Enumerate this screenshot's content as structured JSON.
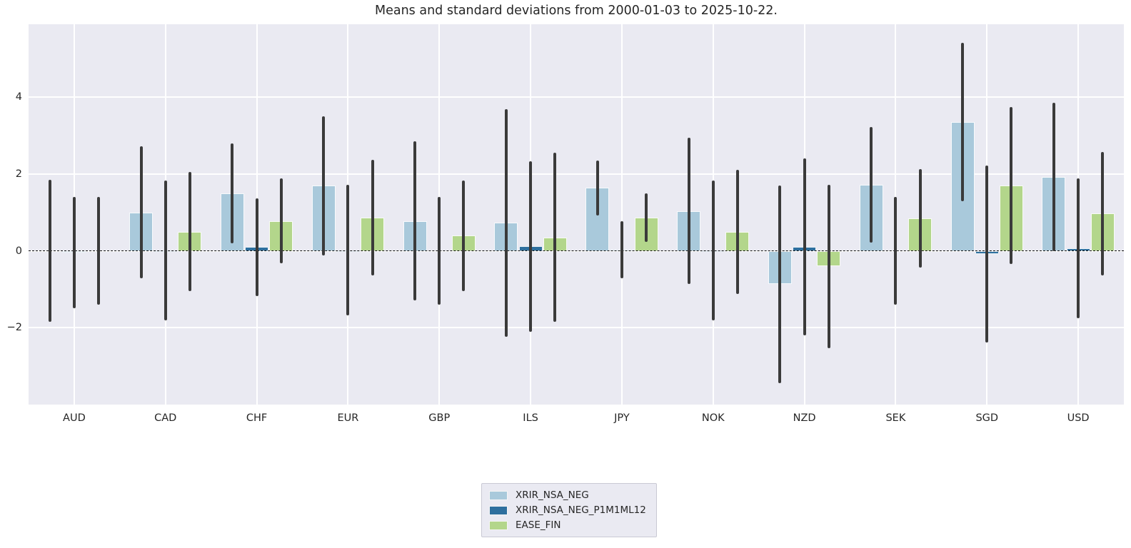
{
  "chart_data": {
    "type": "bar",
    "title": "Means and standard deviations from 2000-01-03 to 2025-10-22.",
    "categories": [
      "AUD",
      "CAD",
      "CHF",
      "EUR",
      "GBP",
      "ILS",
      "JPY",
      "NOK",
      "NZD",
      "SEK",
      "SGD",
      "USD"
    ],
    "series": [
      {
        "name": "XRIR_NSA_NEG",
        "color": "#a9c9db",
        "means": [
          0.0,
          1.0,
          1.5,
          1.7,
          0.78,
          0.73,
          1.64,
          1.04,
          -0.87,
          1.72,
          3.35,
          1.93
        ],
        "stds": [
          1.85,
          1.72,
          1.3,
          1.81,
          2.07,
          2.96,
          0.72,
          1.9,
          2.58,
          1.5,
          2.06,
          1.93
        ]
      },
      {
        "name": "XRIR_NSA_NEG_P1M1ML12",
        "color": "#2e6f9e",
        "means": [
          -0.05,
          0.02,
          0.1,
          0.02,
          0.0,
          0.12,
          0.03,
          0.02,
          0.1,
          0.0,
          -0.08,
          0.07
        ],
        "stds": [
          1.45,
          1.82,
          1.27,
          1.7,
          1.4,
          2.22,
          0.75,
          1.82,
          2.3,
          1.4,
          2.3,
          1.82
        ]
      },
      {
        "name": "EASE_FIN",
        "color": "#b3d68b",
        "means": [
          0.0,
          0.5,
          0.78,
          0.87,
          0.4,
          0.35,
          0.87,
          0.5,
          -0.4,
          0.85,
          1.7,
          0.97
        ],
        "stds": [
          1.4,
          1.55,
          1.1,
          1.5,
          1.44,
          2.2,
          0.63,
          1.62,
          2.13,
          1.28,
          2.04,
          1.6
        ]
      }
    ],
    "error_bars": true,
    "zero_line": "dashed-black",
    "yticks": [
      4,
      2,
      0,
      -2
    ],
    "ylim": [
      -4.0,
      5.9
    ],
    "grid": true,
    "axes_background": "#eaeaf2",
    "gridline_color": "#ffffff",
    "errorbar_color": "#3a3a3a",
    "legend_position": "bottom-center"
  },
  "legend": {
    "items": [
      {
        "label": "XRIR_NSA_NEG",
        "color": "#a9c9db"
      },
      {
        "label": "XRIR_NSA_NEG_P1M1ML12",
        "color": "#2e6f9e"
      },
      {
        "label": "EASE_FIN",
        "color": "#b3d68b"
      }
    ]
  }
}
